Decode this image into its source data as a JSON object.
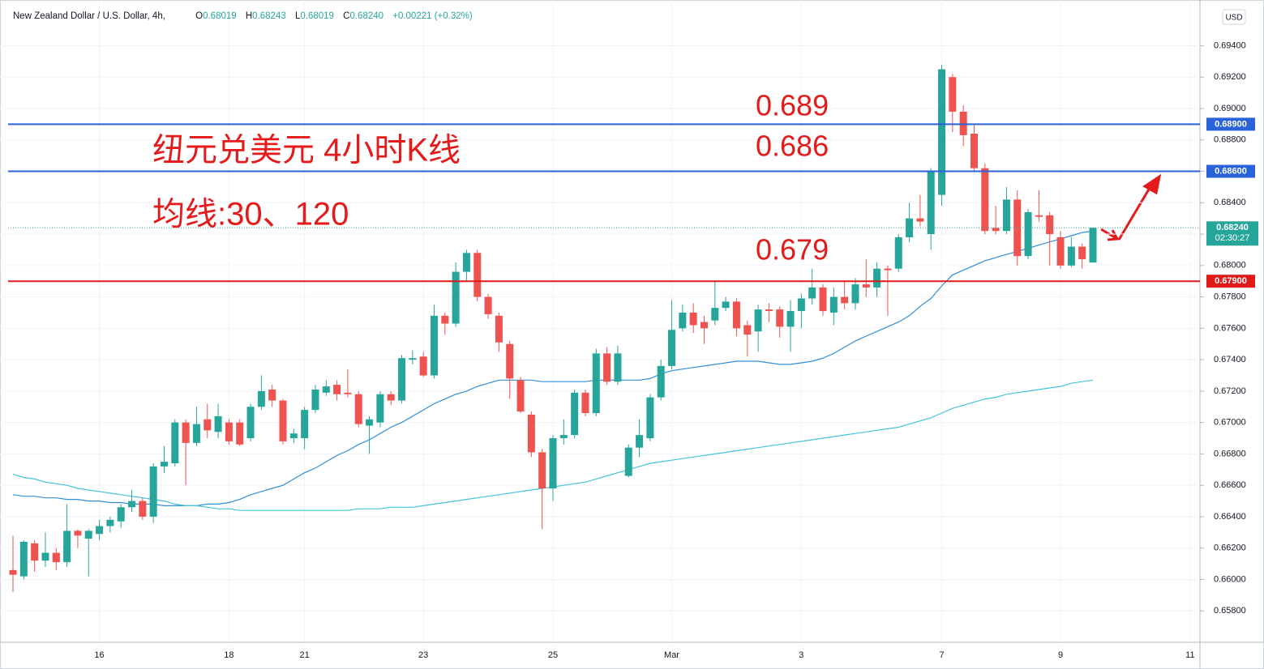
{
  "header": {
    "symbol": "New Zealand Dollar / U.S. Dollar, 4h,",
    "ohlc": [
      {
        "label": "O",
        "value": "0.68019"
      },
      {
        "label": "H",
        "value": "0.68243"
      },
      {
        "label": "L",
        "value": "0.68019"
      },
      {
        "label": "C",
        "value": "0.68240"
      }
    ],
    "change": "+0.00221 (+0.32%)",
    "currency": "USD"
  },
  "chart_data": {
    "type": "candlestick",
    "categories": [
      null,
      null,
      null,
      null,
      null,
      null,
      null,
      null,
      "16",
      null,
      null,
      null,
      null,
      null,
      null,
      null,
      null,
      null,
      null,
      null,
      "18",
      null,
      null,
      null,
      null,
      null,
      null,
      "21",
      null,
      null,
      null,
      null,
      null,
      null,
      null,
      null,
      null,
      null,
      "23",
      null,
      null,
      null,
      null,
      null,
      null,
      null,
      null,
      null,
      null,
      null,
      "25",
      null,
      null,
      null,
      null,
      null,
      null,
      null,
      null,
      null,
      null,
      "Mar",
      null,
      null,
      null,
      null,
      null,
      null,
      null,
      null,
      null,
      null,
      null,
      "3",
      null,
      null,
      null,
      null,
      null,
      null,
      null,
      null,
      null,
      null,
      null,
      null,
      "7",
      null,
      null,
      null,
      null,
      null,
      null,
      null,
      null,
      null,
      null,
      "9",
      null,
      null,
      null,
      null,
      null,
      null,
      null,
      null,
      null,
      null,
      null,
      "11"
    ],
    "open": [
      0.6606,
      0.6602,
      0.6623,
      0.6612,
      0.6617,
      0.6611,
      0.6631,
      0.6626,
      0.6629,
      0.6634,
      0.6637,
      0.6646,
      0.665,
      0.664,
      0.6672,
      0.6674,
      0.67,
      0.6687,
      0.6702,
      0.6694,
      0.67,
      0.67,
      0.669,
      0.671,
      0.6721,
      0.6714,
      0.669,
      0.669,
      0.6708,
      0.6719,
      0.6724,
      0.6719,
      0.6718,
      0.6698,
      0.67,
      0.6718,
      0.6714,
      0.674,
      0.6742,
      0.673,
      0.6768,
      0.6763,
      0.6796,
      0.6808,
      0.678,
      0.6768,
      0.675,
      0.6727,
      0.6705,
      0.6681,
      0.6658,
      0.669,
      0.6692,
      0.6719,
      0.6706,
      0.6744,
      0.6726,
      0.6666,
      0.6684,
      0.669,
      0.6716,
      0.6736,
      0.676,
      0.677,
      0.6764,
      0.6765,
      0.6773,
      0.6777,
      0.6762,
      0.6758,
      0.6772,
      0.6772,
      0.6761,
      0.6771,
      0.6779,
      0.6786,
      0.677,
      0.678,
      0.6776,
      0.6788,
      0.6786,
      0.6798,
      0.6798,
      0.6818,
      0.683,
      0.682,
      0.6845,
      0.692,
      0.6898,
      0.6884,
      0.6862,
      0.6824,
      0.6822,
      0.6842,
      0.6806,
      0.6832,
      0.6832,
      0.6818,
      0.68,
      0.6812,
      0.68019,
      null,
      null,
      null,
      null,
      null,
      null,
      null,
      null,
      null
    ],
    "high": [
      0.6628,
      0.6625,
      0.6625,
      0.663,
      0.662,
      0.6648,
      0.6632,
      0.6632,
      0.6638,
      0.664,
      0.6648,
      0.6657,
      0.6652,
      0.6674,
      0.6685,
      0.6702,
      0.6702,
      0.671,
      0.6712,
      0.6712,
      0.6702,
      0.6702,
      0.6712,
      0.673,
      0.6724,
      0.6715,
      0.6696,
      0.671,
      0.6724,
      0.6727,
      0.6727,
      0.6734,
      0.672,
      0.6704,
      0.672,
      0.672,
      0.6743,
      0.6746,
      0.6745,
      0.6775,
      0.677,
      0.6802,
      0.681,
      0.681,
      0.6782,
      0.677,
      0.6752,
      0.6729,
      0.6707,
      0.6683,
      0.6692,
      0.6702,
      0.6721,
      0.6721,
      0.6747,
      0.6748,
      0.6749,
      0.6686,
      0.6702,
      0.6718,
      0.674,
      0.6778,
      0.6775,
      0.6776,
      0.6768,
      0.679,
      0.678,
      0.6779,
      0.6765,
      0.6775,
      0.6776,
      0.6774,
      0.6778,
      0.6782,
      0.6798,
      0.6788,
      0.6786,
      0.679,
      0.6792,
      0.6804,
      0.6802,
      0.68,
      0.682,
      0.684,
      0.6845,
      0.6862,
      0.6928,
      0.6922,
      0.6902,
      0.689,
      0.6865,
      0.6838,
      0.685,
      0.6848,
      0.6836,
      0.6848,
      0.6834,
      0.6822,
      0.6818,
      0.6814,
      0.68243,
      null,
      null,
      null,
      null,
      null,
      null,
      null,
      null,
      null
    ],
    "low": [
      0.6592,
      0.66,
      0.6605,
      0.6608,
      0.6606,
      0.6608,
      0.662,
      0.6602,
      0.6625,
      0.663,
      0.6633,
      0.6643,
      0.6638,
      0.6636,
      0.6668,
      0.6672,
      0.666,
      0.6685,
      0.669,
      0.669,
      0.6686,
      0.6685,
      0.6688,
      0.6708,
      0.671,
      0.6686,
      0.6687,
      0.6683,
      0.6706,
      0.6717,
      0.6714,
      0.6716,
      0.6697,
      0.668,
      0.6697,
      0.6711,
      0.6712,
      0.6737,
      0.6729,
      0.6728,
      0.6756,
      0.6761,
      0.679,
      0.6777,
      0.6766,
      0.6745,
      0.6715,
      0.6706,
      0.6678,
      0.6632,
      0.665,
      0.6686,
      0.669,
      0.6704,
      0.6704,
      0.6724,
      0.6724,
      0.6665,
      0.6678,
      0.6688,
      0.6714,
      0.6734,
      0.6758,
      0.6757,
      0.675,
      0.6762,
      0.6771,
      0.6755,
      0.6742,
      0.6745,
      0.6764,
      0.6754,
      0.6745,
      0.676,
      0.6775,
      0.6768,
      0.6762,
      0.6772,
      0.6772,
      0.678,
      0.678,
      0.6768,
      0.6796,
      0.6815,
      0.6825,
      0.681,
      0.6838,
      0.6885,
      0.6876,
      0.686,
      0.682,
      0.682,
      0.682,
      0.68,
      0.6804,
      0.6828,
      0.68,
      0.6798,
      0.6799,
      0.6798,
      0.68019,
      null,
      null,
      null,
      null,
      null,
      null,
      null,
      null,
      null
    ],
    "close": [
      0.6603,
      0.6624,
      0.6612,
      0.6617,
      0.6611,
      0.6631,
      0.6628,
      0.6631,
      0.6634,
      0.6638,
      0.6646,
      0.665,
      0.664,
      0.6672,
      0.6675,
      0.67,
      0.6687,
      0.6699,
      0.6695,
      0.6704,
      0.6688,
      0.6686,
      0.671,
      0.672,
      0.6714,
      0.6688,
      0.6693,
      0.6708,
      0.6721,
      0.6723,
      0.6718,
      0.6718,
      0.6699,
      0.6702,
      0.6718,
      0.6714,
      0.6741,
      0.6741,
      0.673,
      0.6768,
      0.6763,
      0.6796,
      0.6808,
      0.678,
      0.6769,
      0.6751,
      0.6728,
      0.6707,
      0.6681,
      0.6658,
      0.669,
      0.6692,
      0.6719,
      0.6706,
      0.6744,
      0.6726,
      0.6744,
      0.6684,
      0.6692,
      0.6716,
      0.6736,
      0.6759,
      0.677,
      0.6762,
      0.676,
      0.6773,
      0.6777,
      0.676,
      0.6756,
      0.6772,
      0.6771,
      0.6761,
      0.6771,
      0.6779,
      0.6786,
      0.6771,
      0.678,
      0.6776,
      0.6788,
      0.6786,
      0.6798,
      0.6797,
      0.6818,
      0.683,
      0.6828,
      0.686,
      0.6925,
      0.6898,
      0.6883,
      0.6862,
      0.6822,
      0.6822,
      0.6842,
      0.6806,
      0.6834,
      0.6831,
      0.682,
      0.68,
      0.6812,
      0.6804,
      0.6824,
      null,
      null,
      null,
      null,
      null,
      null,
      null,
      null,
      null
    ],
    "up_color": "#26a69a",
    "down_color": "#ef5350",
    "lines": [
      {
        "color": "#2f8fd8",
        "values": [
          0.6654,
          0.6653,
          0.6653,
          0.6652,
          0.6652,
          0.6651,
          0.6651,
          0.665,
          0.665,
          0.6649,
          0.6649,
          0.6648,
          0.6648,
          0.6648,
          0.6647,
          0.6647,
          0.6647,
          0.6647,
          0.6648,
          0.6648,
          0.6649,
          0.6651,
          0.6654,
          0.6656,
          0.6658,
          0.666,
          0.6664,
          0.6668,
          0.6671,
          0.6675,
          0.6679,
          0.6682,
          0.6686,
          0.6689,
          0.6693,
          0.6697,
          0.67,
          0.6704,
          0.6708,
          0.6712,
          0.6715,
          0.6718,
          0.672,
          0.6723,
          0.6725,
          0.6727,
          0.6727,
          0.6727,
          0.6727,
          0.6726,
          0.6726,
          0.6726,
          0.6726,
          0.6726,
          0.6727,
          0.6727,
          0.6727,
          0.6727,
          0.6727,
          0.6728,
          0.6731,
          0.6733,
          0.6734,
          0.6735,
          0.6736,
          0.6737,
          0.6738,
          0.6739,
          0.6739,
          0.6739,
          0.6738,
          0.6737,
          0.6737,
          0.6738,
          0.6739,
          0.6741,
          0.6744,
          0.6748,
          0.6752,
          0.6755,
          0.6758,
          0.6761,
          0.6764,
          0.6768,
          0.6774,
          0.6779,
          0.6787,
          0.6794,
          0.6797,
          0.68,
          0.6803,
          0.6805,
          0.6807,
          0.6809,
          0.6811,
          0.6813,
          0.6815,
          0.6817,
          0.6819,
          0.6821,
          0.6822,
          null,
          null,
          null,
          null,
          null,
          null,
          null,
          null,
          null
        ]
      },
      {
        "color": "#45c3d9",
        "values": [
          0.6667,
          0.6665,
          0.6664,
          0.6662,
          0.6661,
          0.666,
          0.6658,
          0.6657,
          0.6656,
          0.6655,
          0.6654,
          0.6653,
          0.6652,
          0.6651,
          0.665,
          0.6648,
          0.6647,
          0.6647,
          0.6646,
          0.6645,
          0.6645,
          0.6644,
          0.6644,
          0.6644,
          0.6644,
          0.6644,
          0.6644,
          0.6644,
          0.6644,
          0.6644,
          0.6644,
          0.6644,
          0.6645,
          0.6645,
          0.6645,
          0.6646,
          0.6646,
          0.6646,
          0.6647,
          0.6648,
          0.6649,
          0.665,
          0.6651,
          0.6652,
          0.6653,
          0.6654,
          0.6655,
          0.6656,
          0.6657,
          0.6658,
          0.6659,
          0.666,
          0.6661,
          0.6662,
          0.6664,
          0.6666,
          0.6668,
          0.667,
          0.6672,
          0.6674,
          0.6675,
          0.6676,
          0.6677,
          0.6678,
          0.6679,
          0.668,
          0.6681,
          0.6682,
          0.6683,
          0.6684,
          0.6685,
          0.6686,
          0.6687,
          0.6688,
          0.6689,
          0.669,
          0.6691,
          0.6692,
          0.6693,
          0.6694,
          0.6695,
          0.6696,
          0.6697,
          0.6699,
          0.6701,
          0.6703,
          0.6706,
          0.6709,
          0.6711,
          0.6713,
          0.6715,
          0.6716,
          0.6718,
          0.6719,
          0.672,
          0.6721,
          0.6722,
          0.6723,
          0.6725,
          0.6726,
          0.6727,
          null,
          null,
          null,
          null,
          null,
          null,
          null,
          null,
          null
        ]
      }
    ],
    "ylim": [
      0.656,
      0.6965
    ],
    "yticks": [
      {
        "value": 0.658,
        "label": "0.65800"
      },
      {
        "value": 0.66,
        "label": "0.66000"
      },
      {
        "value": 0.662,
        "label": "0.66200"
      },
      {
        "value": 0.664,
        "label": "0.66400"
      },
      {
        "value": 0.666,
        "label": "0.66600"
      },
      {
        "value": 0.668,
        "label": "0.66800"
      },
      {
        "value": 0.67,
        "label": "0.67000"
      },
      {
        "value": 0.672,
        "label": "0.67200"
      },
      {
        "value": 0.674,
        "label": "0.67400"
      },
      {
        "value": 0.676,
        "label": "0.67600"
      },
      {
        "value": 0.678,
        "label": "0.67800"
      },
      {
        "value": 0.68,
        "label": "0.68000"
      },
      {
        "value": 0.682,
        "label": "0.68200"
      },
      {
        "value": 0.684,
        "label": "0.68400"
      },
      {
        "value": 0.686,
        "label": "0.68600"
      },
      {
        "value": 0.688,
        "label": "0.68800"
      },
      {
        "value": 0.69,
        "label": "0.69000"
      },
      {
        "value": 0.692,
        "label": "0.69200"
      },
      {
        "value": 0.694,
        "label": "0.69400"
      }
    ],
    "grid": true,
    "levels": [
      {
        "value": 0.689,
        "label": "0.68900",
        "color": "#2962d9"
      },
      {
        "value": 0.686,
        "label": "0.68600",
        "color": "#2962d9"
      },
      {
        "value": 0.679,
        "label": "0.67900",
        "color": "#e01919"
      }
    ],
    "last_price": {
      "value": 0.6824,
      "label": "0.68240",
      "countdown": "02:30:27"
    },
    "annotations": [
      "纽元兑美元 4小时K线",
      "均线:30、120",
      "0.689",
      "0.686",
      "0.679"
    ]
  }
}
